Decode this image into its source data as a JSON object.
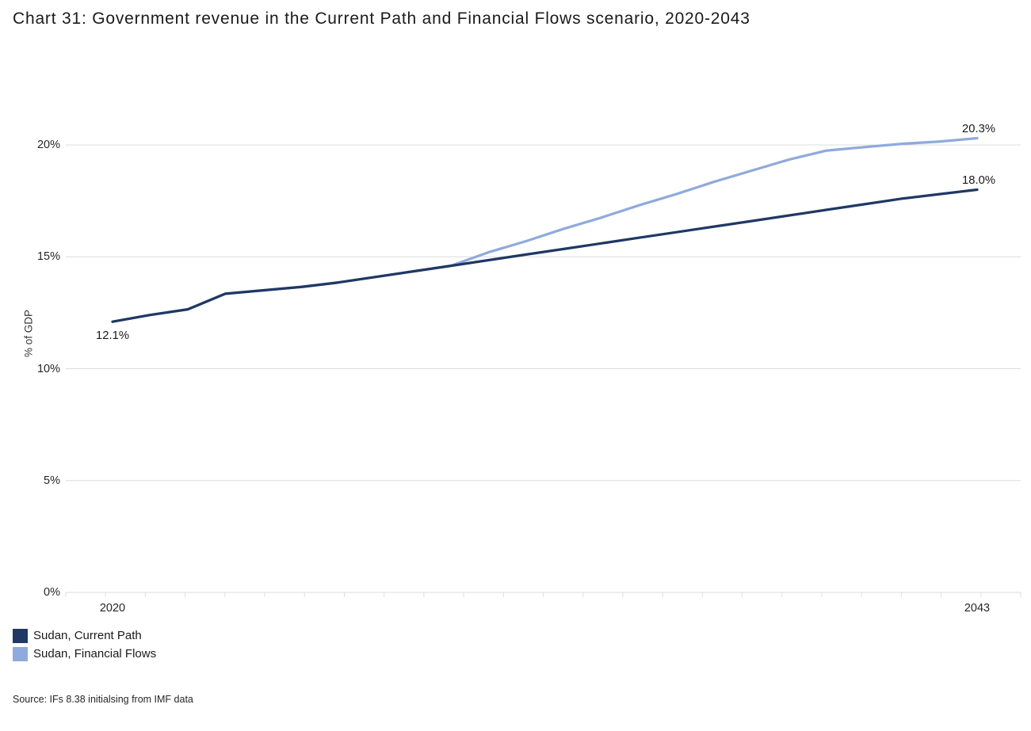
{
  "title": "Chart 31: Government revenue in the Current Path and Financial Flows scenario, 2020-2043",
  "source": "Source: IFs 8.38 initialsing from IMF data",
  "colors": {
    "current_path": "#1F3864",
    "financial_flows": "#8FAADC",
    "gridline": "#DCDCDC",
    "axis_tick": "#DEDEDE"
  },
  "chart_data": {
    "type": "line",
    "title": "Chart 31: Government revenue in the Current Path and Financial Flows scenario, 2020-2043",
    "xlabel": "",
    "ylabel": "% of GDP",
    "grid": "horizontal",
    "legend_position": "bottom-left",
    "ylim": [
      0,
      21
    ],
    "x": [
      2020,
      2021,
      2022,
      2023,
      2024,
      2025,
      2026,
      2027,
      2028,
      2029,
      2030,
      2031,
      2032,
      2033,
      2034,
      2035,
      2036,
      2037,
      2038,
      2039,
      2040,
      2041,
      2042,
      2043
    ],
    "x_axis_labels": [
      {
        "year": 2020,
        "label": "2020"
      },
      {
        "year": 2043,
        "label": "2043"
      }
    ],
    "yticks": [
      {
        "value": 0,
        "label": "0%"
      },
      {
        "value": 5,
        "label": "5%"
      },
      {
        "value": 10,
        "label": "10%"
      },
      {
        "value": 15,
        "label": "15%"
      },
      {
        "value": 20,
        "label": "20%"
      }
    ],
    "series": [
      {
        "name": "Sudan, Financial Flows",
        "color": "#8FAADC",
        "values": [
          12.1,
          12.4,
          12.65,
          13.35,
          13.5,
          13.65,
          13.85,
          14.1,
          14.35,
          14.6,
          15.2,
          15.7,
          16.25,
          16.75,
          17.3,
          17.8,
          18.35,
          18.85,
          19.35,
          19.75,
          19.9,
          20.05,
          20.15,
          20.3
        ]
      },
      {
        "name": "Sudan, Current Path",
        "color": "#1F3864",
        "values": [
          12.1,
          12.4,
          12.65,
          13.35,
          13.5,
          13.65,
          13.85,
          14.1,
          14.35,
          14.6,
          14.85,
          15.1,
          15.35,
          15.6,
          15.85,
          16.1,
          16.35,
          16.6,
          16.85,
          17.1,
          17.35,
          17.6,
          17.8,
          18.0
        ]
      }
    ],
    "legend_order": [
      "Sudan, Current Path",
      "Sudan, Financial Flows"
    ],
    "annotations": [
      {
        "text": "12.1%",
        "series": "Sudan, Current Path",
        "year": 2020,
        "value": 12.1,
        "position": "below"
      },
      {
        "text": "18.0%",
        "series": "Sudan, Current Path",
        "year": 2043,
        "value": 18.0,
        "position": "above"
      },
      {
        "text": "20.3%",
        "series": "Sudan, Financial Flows",
        "year": 2043,
        "value": 20.3,
        "position": "above"
      }
    ]
  }
}
